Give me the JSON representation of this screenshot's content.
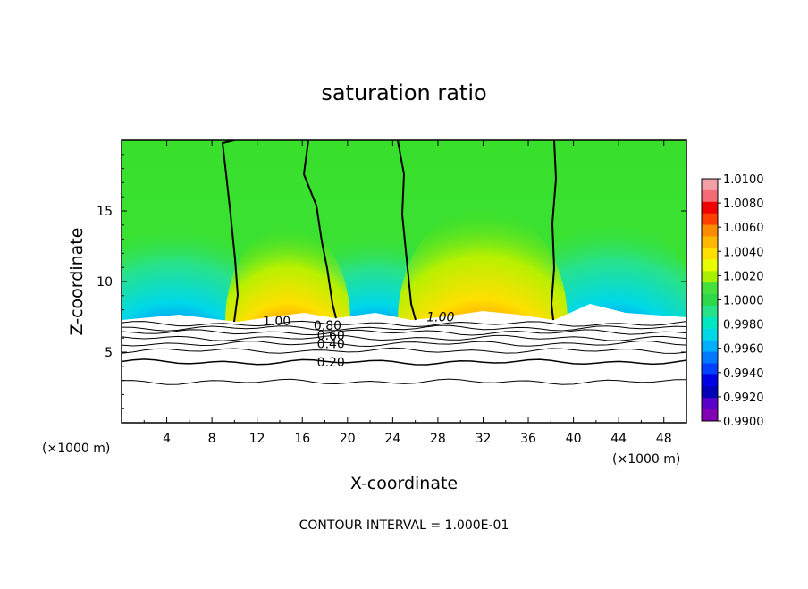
{
  "chart_data": {
    "type": "heatmap",
    "title": "saturation ratio",
    "xlabel": "X-coordinate",
    "ylabel": "Z-coordinate",
    "x_unit_left": "(×1000 m)",
    "x_unit_right": "(×1000 m)",
    "xlim": [
      0,
      50
    ],
    "ylim": [
      0,
      20
    ],
    "x_ticks": [
      4,
      8,
      12,
      16,
      20,
      24,
      28,
      32,
      36,
      40,
      44,
      48
    ],
    "x_tick_labels": [
      "4",
      "8",
      "12",
      "16",
      "20",
      "24",
      "28",
      "32",
      "36",
      "40",
      "44",
      "48"
    ],
    "y_ticks": [
      5,
      10,
      15
    ],
    "y_tick_labels": [
      "5",
      "10",
      "15"
    ],
    "colorbar": {
      "labels": [
        "1.0100",
        "1.0080",
        "1.0060",
        "1.0040",
        "1.0020",
        "1.0000",
        "0.9980",
        "0.9960",
        "0.9940",
        "0.9920",
        "0.9900"
      ],
      "colors": [
        "#f2a0a8",
        "#f56b75",
        "#f00000",
        "#ff4000",
        "#ff8c00",
        "#ffb800",
        "#ffe000",
        "#e8ff00",
        "#a8f000",
        "#46e03c",
        "#2ed84a",
        "#28e28a",
        "#00e6c0",
        "#00d8e8",
        "#00b0ff",
        "#0078ff",
        "#0040ff",
        "#0000e6",
        "#0000b4",
        "#5a00c8",
        "#8200b4"
      ]
    },
    "contour_labels": [
      {
        "text": "1.00",
        "x": 12.5,
        "z": 7.2
      },
      {
        "text": "1.00",
        "x": 27.0,
        "z": 7.5
      },
      {
        "text": "0.80",
        "x": 17.0,
        "z": 6.9
      },
      {
        "text": "0.60",
        "x": 17.3,
        "z": 6.2
      },
      {
        "text": "0.40",
        "x": 17.3,
        "z": 5.6
      },
      {
        "text": "0.20",
        "x": 17.3,
        "z": 4.3
      }
    ],
    "footer": "CONTOUR INTERVAL = 1.000E-01"
  }
}
